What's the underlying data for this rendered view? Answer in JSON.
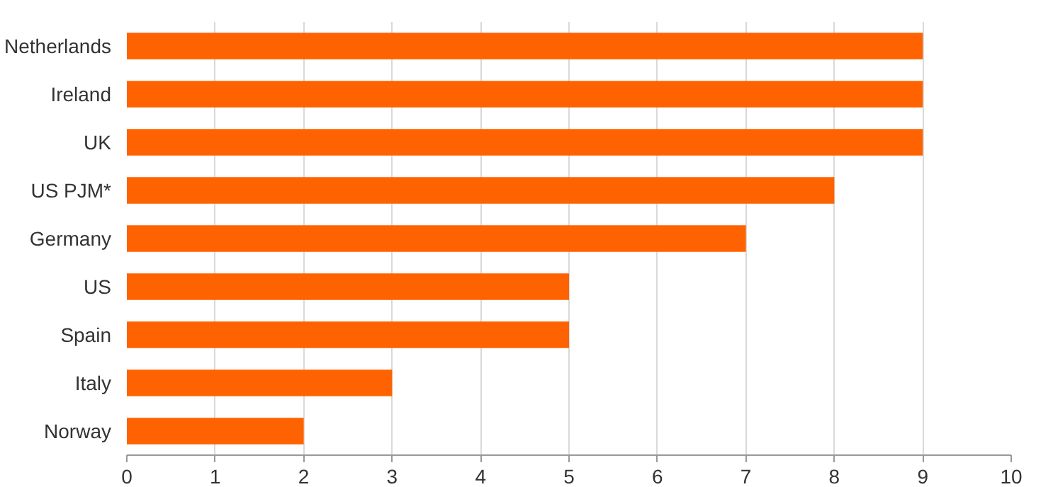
{
  "chart_data": {
    "type": "bar",
    "orientation": "horizontal",
    "categories": [
      "Netherlands",
      "Ireland",
      "UK",
      "US PJM*",
      "Germany",
      "US",
      "Spain",
      "Italy",
      "Norway"
    ],
    "values": [
      9,
      9,
      9,
      8,
      7,
      5,
      5,
      3,
      2
    ],
    "color": "#ff6200",
    "xlim": [
      0,
      10
    ],
    "xticks": [
      0,
      1,
      2,
      3,
      4,
      5,
      6,
      7,
      8,
      9,
      10
    ],
    "grid": "x"
  }
}
